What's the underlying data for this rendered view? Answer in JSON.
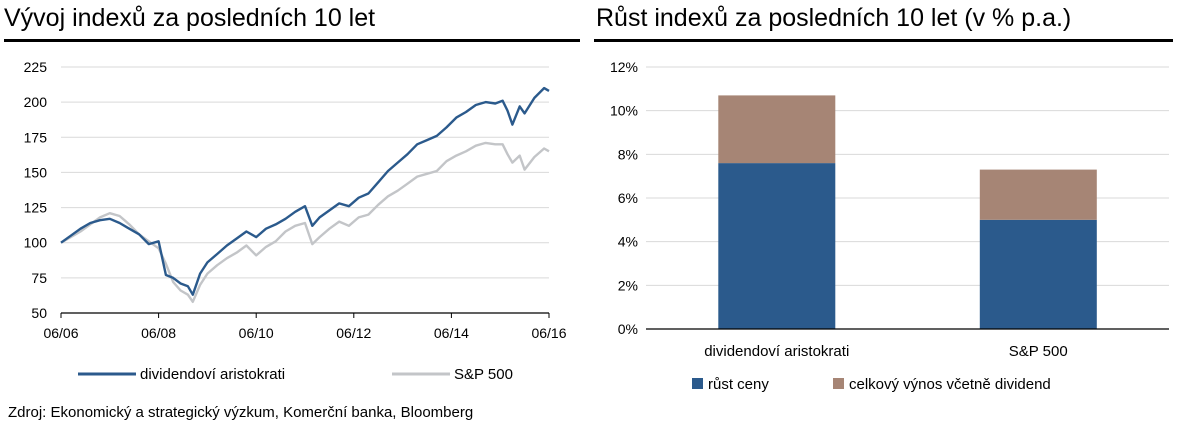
{
  "source_note": "Zdroj: Ekonomický a strategický výzkum, Komerční banka, Bloomberg",
  "colors": {
    "blue": "#2b5a8c",
    "gray": "#c3c5c8",
    "brown": "#a68575",
    "grid": "#d9d9d9"
  },
  "chart_data": [
    {
      "type": "line",
      "title": "Vývoj indexů za posledních 10 let",
      "x_ticks": [
        "06/06",
        "06/08",
        "06/10",
        "06/12",
        "06/14",
        "06/16"
      ],
      "x_range": [
        2006.5,
        2016.5
      ],
      "ylim": [
        50,
        225
      ],
      "y_ticks": [
        50,
        75,
        100,
        125,
        150,
        175,
        200,
        225
      ],
      "grid": "horizontal",
      "legend_position": "bottom",
      "series": [
        {
          "name": "dividendoví aristokrati",
          "color": "#2b5a8c",
          "x": [
            2006.5,
            2006.7,
            2006.9,
            2007.1,
            2007.3,
            2007.5,
            2007.7,
            2007.9,
            2008.1,
            2008.3,
            2008.5,
            2008.65,
            2008.8,
            2008.95,
            2009.1,
            2009.2,
            2009.35,
            2009.5,
            2009.7,
            2009.9,
            2010.1,
            2010.3,
            2010.5,
            2010.7,
            2010.9,
            2011.1,
            2011.3,
            2011.5,
            2011.65,
            2011.8,
            2012.0,
            2012.2,
            2012.4,
            2012.6,
            2012.8,
            2013.0,
            2013.2,
            2013.4,
            2013.6,
            2013.8,
            2014.0,
            2014.2,
            2014.4,
            2014.6,
            2014.8,
            2015.0,
            2015.2,
            2015.4,
            2015.55,
            2015.65,
            2015.75,
            2015.9,
            2016.0,
            2016.2,
            2016.4,
            2016.5
          ],
          "values": [
            100,
            105,
            110,
            114,
            116,
            117,
            114,
            110,
            106,
            99,
            101,
            77,
            75,
            71,
            69,
            63,
            78,
            86,
            92,
            98,
            103,
            108,
            104,
            110,
            113,
            117,
            122,
            126,
            112,
            118,
            123,
            128,
            126,
            132,
            135,
            143,
            151,
            157,
            163,
            170,
            173,
            176,
            182,
            189,
            193,
            198,
            200,
            199,
            201,
            194,
            184,
            197,
            192,
            203,
            210,
            208
          ]
        },
        {
          "name": "S&P 500",
          "color": "#c3c5c8",
          "x": [
            2006.5,
            2006.7,
            2006.9,
            2007.1,
            2007.3,
            2007.5,
            2007.7,
            2007.9,
            2008.1,
            2008.3,
            2008.5,
            2008.65,
            2008.8,
            2008.95,
            2009.1,
            2009.2,
            2009.35,
            2009.5,
            2009.7,
            2009.9,
            2010.1,
            2010.3,
            2010.5,
            2010.7,
            2010.9,
            2011.1,
            2011.3,
            2011.5,
            2011.65,
            2011.8,
            2012.0,
            2012.2,
            2012.4,
            2012.6,
            2012.8,
            2013.0,
            2013.2,
            2013.4,
            2013.6,
            2013.8,
            2014.0,
            2014.2,
            2014.4,
            2014.6,
            2014.8,
            2015.0,
            2015.2,
            2015.4,
            2015.55,
            2015.65,
            2015.75,
            2015.9,
            2016.0,
            2016.2,
            2016.4,
            2016.5
          ],
          "values": [
            100,
            104,
            108,
            113,
            118,
            121,
            119,
            113,
            106,
            101,
            96,
            85,
            72,
            66,
            63,
            58,
            70,
            78,
            84,
            89,
            93,
            98,
            91,
            97,
            101,
            108,
            112,
            114,
            99,
            104,
            110,
            115,
            112,
            118,
            120,
            127,
            133,
            137,
            142,
            147,
            149,
            151,
            158,
            162,
            165,
            169,
            171,
            170,
            170,
            163,
            157,
            162,
            152,
            161,
            167,
            165
          ]
        }
      ]
    },
    {
      "type": "bar",
      "stacked": true,
      "title": "Růst indexů za posledních 10 let (v % p.a.)",
      "categories": [
        "dividendoví aristokrati",
        "S&P 500"
      ],
      "ylim": [
        0,
        12
      ],
      "y_ticks": [
        0,
        2,
        4,
        6,
        8,
        10,
        12
      ],
      "y_tick_labels": [
        "0%",
        "2%",
        "4%",
        "6%",
        "8%",
        "10%",
        "12%"
      ],
      "grid": "horizontal",
      "legend_position": "bottom",
      "series": [
        {
          "name": "růst ceny",
          "color": "#2b5a8c",
          "values": [
            7.6,
            5.0
          ]
        },
        {
          "name": "celkový výnos včetně dividend",
          "color": "#a68575",
          "values": [
            3.1,
            2.3
          ]
        }
      ]
    }
  ]
}
